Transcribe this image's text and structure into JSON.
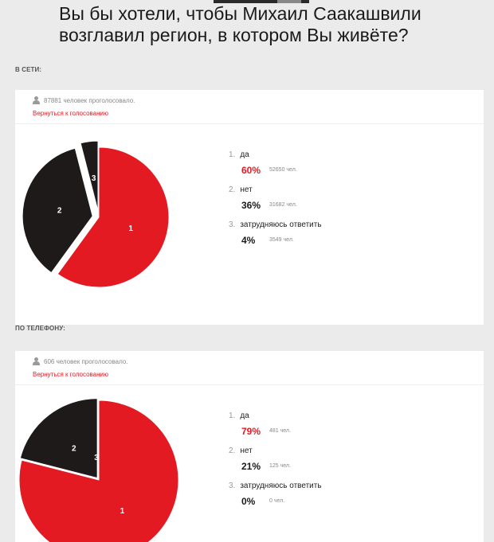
{
  "question": "Вы бы хотели, чтобы Михаил Саакашвили возглавил регион, в котором Вы живёте?",
  "colors": {
    "accent": "#e41a22",
    "dark": "#1e1a1a",
    "light": "#f2f2f2"
  },
  "polls": [
    {
      "section_label": "В СЕТИ:",
      "voted_text": "87881 человек проголосовало.",
      "back_link": "Вернуться к голосованию",
      "options": [
        {
          "num": "1.",
          "label": "да",
          "percent": "60%",
          "count": "52650 чел."
        },
        {
          "num": "2.",
          "label": "нет",
          "percent": "36%",
          "count": "31682 чел."
        },
        {
          "num": "3.",
          "label": "затрудняюсь ответить",
          "percent": "4%",
          "count": "3549 чел."
        }
      ]
    },
    {
      "section_label": "ПО ТЕЛЕФОНУ:",
      "voted_text": "606 человек проголосовало.",
      "back_link": "Вернуться к голосованию",
      "options": [
        {
          "num": "1.",
          "label": "да",
          "percent": "79%",
          "count": "481 чел."
        },
        {
          "num": "2.",
          "label": "нет",
          "percent": "21%",
          "count": "125 чел."
        },
        {
          "num": "3.",
          "label": "затрудняюсь ответить",
          "percent": "0%",
          "count": "0 чел."
        }
      ]
    }
  ],
  "chart_data": [
    {
      "type": "pie",
      "categories": [
        "да",
        "нет",
        "затрудняюсь ответить"
      ],
      "values": [
        60,
        36,
        4
      ],
      "slice_labels": [
        "1",
        "2",
        "3"
      ],
      "colors": [
        "#e41a22",
        "#1e1a1a",
        "#1e1a1a"
      ]
    },
    {
      "type": "pie",
      "categories": [
        "да",
        "нет",
        "затрудняюсь ответить"
      ],
      "values": [
        79,
        21,
        0
      ],
      "slice_labels": [
        "1",
        "2",
        "3"
      ],
      "colors": [
        "#e41a22",
        "#1e1a1a",
        "#1e1a1a"
      ]
    }
  ]
}
